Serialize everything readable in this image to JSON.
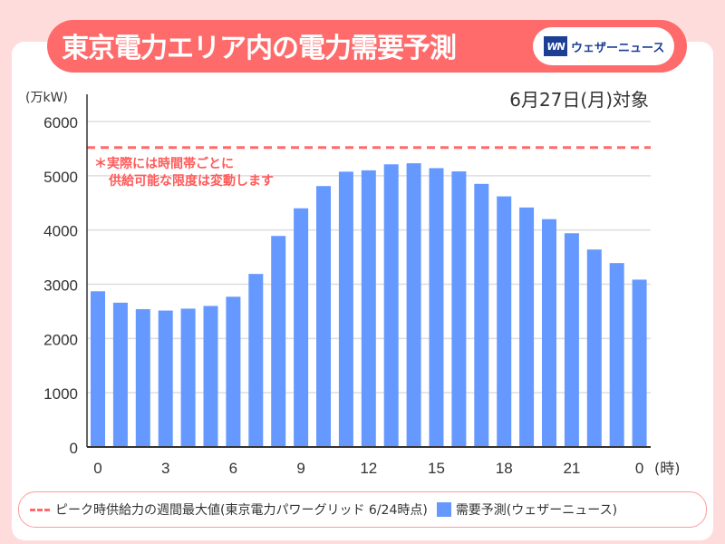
{
  "header": {
    "title": "東京電力エリア内の電力需要予測",
    "logo_text": "ウェザーニュース",
    "logo_mark": "WN"
  },
  "date_label": "6月27日(月)対象",
  "note": {
    "line1": "＊実際には時間帯ごとに",
    "line2": "供給可能な限度は変動します"
  },
  "chart_data": {
    "type": "bar",
    "title": "東京電力エリア内の電力需要予測",
    "ylabel": "(万kW)",
    "xlabel": "(時)",
    "ylim": [
      0,
      6000
    ],
    "yticks": [
      "0",
      "1000",
      "2000",
      "3000",
      "4000",
      "5000",
      "6000"
    ],
    "xtick_labels": [
      {
        "i": 0,
        "label": "0"
      },
      {
        "i": 3,
        "label": "3"
      },
      {
        "i": 6,
        "label": "6"
      },
      {
        "i": 9,
        "label": "9"
      },
      {
        "i": 12,
        "label": "12"
      },
      {
        "i": 15,
        "label": "15"
      },
      {
        "i": 18,
        "label": "18"
      },
      {
        "i": 21,
        "label": "21"
      },
      {
        "i": 24,
        "label": "0"
      }
    ],
    "categories": [
      "0",
      "1",
      "2",
      "3",
      "4",
      "5",
      "6",
      "7",
      "8",
      "9",
      "10",
      "11",
      "12",
      "13",
      "14",
      "15",
      "16",
      "17",
      "18",
      "19",
      "20",
      "21",
      "22",
      "23",
      "0"
    ],
    "series": [
      {
        "name": "需要予測(ウェザーニュース)",
        "type": "bar",
        "color": "#6699ff",
        "values": [
          2870,
          2660,
          2540,
          2515,
          2550,
          2600,
          2770,
          3190,
          3890,
          4400,
          4810,
          5075,
          5100,
          5210,
          5230,
          5140,
          5080,
          4850,
          4620,
          4415,
          4200,
          3940,
          3640,
          3390,
          3085
        ]
      },
      {
        "name": "ピーク時供給力の週間最大値(東京電力パワーグリッド 6/24時点)",
        "type": "hline",
        "color": "#ff6b6b",
        "value": 5520
      }
    ],
    "grid": true,
    "legend_position": "bottom"
  }
}
